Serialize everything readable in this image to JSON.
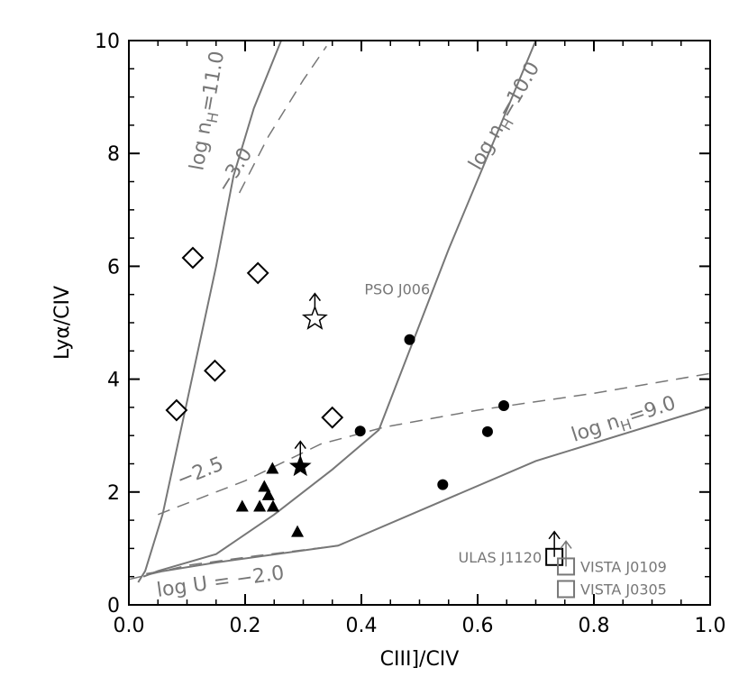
{
  "chart_data": {
    "type": "scatter",
    "title": "",
    "xlabel": "CIII]/CIV",
    "ylabel": "Lyα/CIV",
    "xlim": [
      0,
      1
    ],
    "ylim": [
      0,
      10
    ],
    "xticks": [
      0.0,
      0.2,
      0.4,
      0.6,
      0.8,
      1.0
    ],
    "yticks": [
      0,
      2,
      4,
      6,
      8,
      10
    ],
    "xtick_labels": [
      "0.0",
      "0.2",
      "0.4",
      "0.6",
      "0.8",
      "1.0"
    ],
    "ytick_labels": [
      "0",
      "2",
      "4",
      "6",
      "8",
      "10"
    ],
    "grid": false,
    "model_lines": {
      "density": [
        {
          "label": "log n_H=11.0",
          "points": [
            [
              0.016,
              0.4
            ],
            [
              0.028,
              0.6
            ],
            [
              0.058,
              1.6
            ],
            [
              0.1,
              3.6
            ],
            [
              0.15,
              6.0
            ],
            [
              0.18,
              7.6
            ],
            [
              0.215,
              8.8
            ],
            [
              0.262,
              10.0
            ]
          ]
        },
        {
          "label": "log n_H=10.0",
          "points": [
            [
              0.025,
              0.5
            ],
            [
              0.05,
              0.6
            ],
            [
              0.15,
              0.9
            ],
            [
              0.25,
              1.6
            ],
            [
              0.35,
              2.4
            ],
            [
              0.43,
              3.1
            ],
            [
              0.55,
              6.3
            ],
            [
              0.7,
              10.0
            ]
          ]
        },
        {
          "label": "log n_H=9.0",
          "points": [
            [
              0.03,
              0.55
            ],
            [
              0.15,
              0.75
            ],
            [
              0.36,
              1.05
            ],
            [
              0.7,
              2.55
            ],
            [
              1.0,
              3.5
            ]
          ]
        }
      ],
      "ionization": [
        {
          "label": "log U = −2.0",
          "points": [
            [
              0.0,
              0.45
            ],
            [
              0.1,
              0.7
            ],
            [
              0.22,
              0.87
            ],
            [
              0.36,
              1.05
            ]
          ]
        },
        {
          "label": "−2.5",
          "points": [
            [
              0.05,
              1.6
            ],
            [
              0.2,
              2.2
            ],
            [
              0.33,
              2.85
            ],
            [
              0.44,
              3.15
            ],
            [
              0.6,
              3.45
            ],
            [
              0.8,
              3.75
            ],
            [
              1.0,
              4.1
            ]
          ]
        },
        {
          "label": "−3.0",
          "points": [
            [
              0.19,
              7.3
            ],
            [
              0.24,
              8.3
            ],
            [
              0.3,
              9.3
            ],
            [
              0.34,
              9.9
            ]
          ]
        }
      ]
    },
    "series": [
      {
        "marker": "open-diamond",
        "points": [
          [
            0.11,
            6.15
          ],
          [
            0.222,
            5.88
          ],
          [
            0.148,
            4.15
          ],
          [
            0.082,
            3.45
          ],
          [
            0.35,
            3.32
          ]
        ]
      },
      {
        "marker": "filled-circle",
        "points": [
          [
            0.483,
            4.7
          ],
          [
            0.398,
            3.08
          ],
          [
            0.645,
            3.53
          ],
          [
            0.617,
            3.07
          ],
          [
            0.54,
            2.13
          ]
        ]
      },
      {
        "marker": "filled-triangle",
        "points": [
          [
            0.247,
            2.42
          ],
          [
            0.233,
            2.1
          ],
          [
            0.24,
            1.95
          ],
          [
            0.195,
            1.75
          ],
          [
            0.225,
            1.75
          ],
          [
            0.248,
            1.75
          ],
          [
            0.29,
            1.3
          ]
        ]
      },
      {
        "marker": "filled-star",
        "lower_limit": true,
        "points": [
          [
            0.295,
            2.45
          ]
        ]
      },
      {
        "marker": "open-star",
        "lower_limit": true,
        "label": "PSO J006",
        "points": [
          [
            0.32,
            5.07
          ]
        ]
      },
      {
        "marker": "open-square",
        "lower_limit": true,
        "label": "ULAS J1120",
        "points": [
          [
            0.732,
            0.85
          ]
        ]
      },
      {
        "marker": "open-square-gray",
        "lower_limit": true,
        "label": "VISTA J0109",
        "points": [
          [
            0.752,
            0.68
          ]
        ]
      },
      {
        "marker": "open-square-gray",
        "label": "VISTA J0305",
        "points": [
          [
            0.752,
            0.28
          ]
        ]
      }
    ],
    "colors": {
      "axis": "#000000",
      "model_line": "#777777",
      "markers": "#000000",
      "gray_markers": "#777777"
    }
  }
}
